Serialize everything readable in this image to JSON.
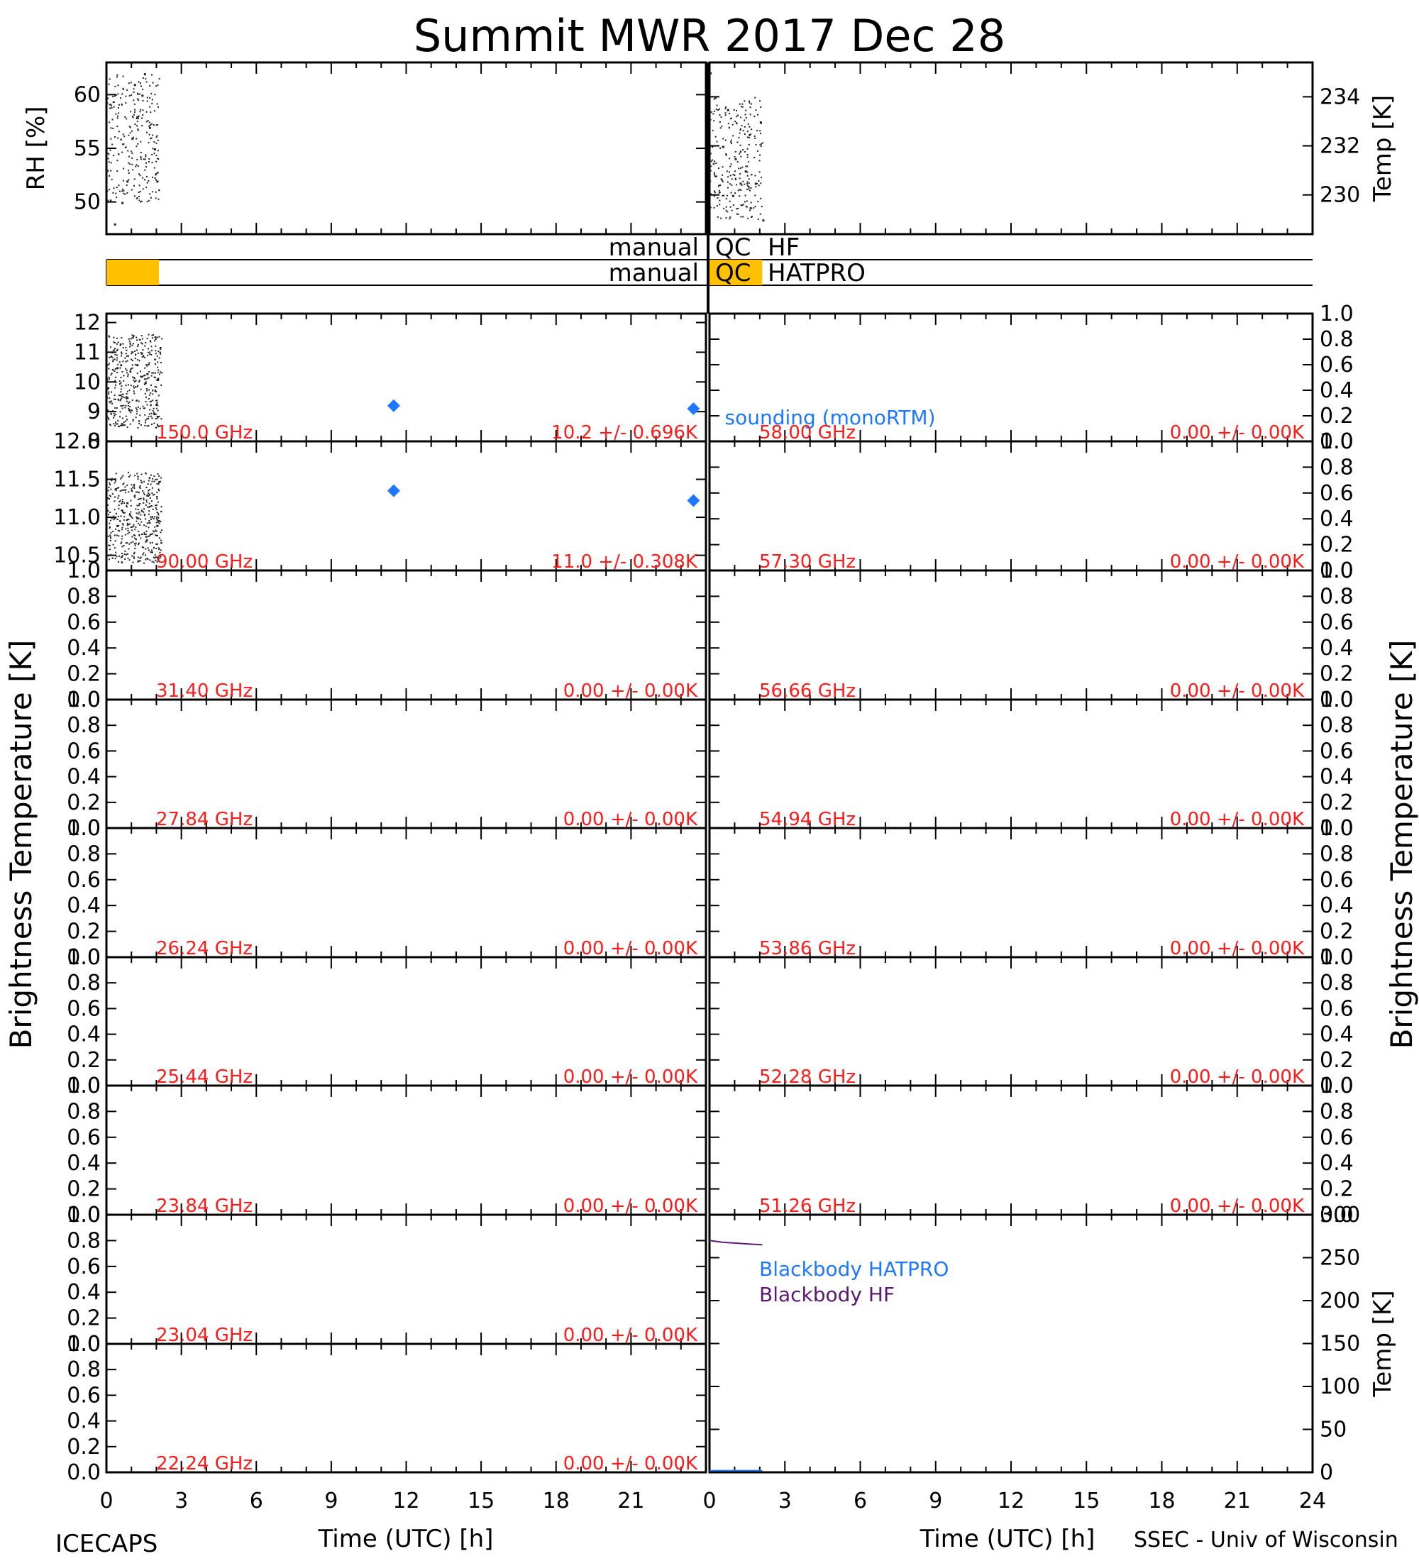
{
  "title": "Summit MWR 2017 Dec 28",
  "footer": {
    "left": "ICECAPS",
    "right": "SSEC - Univ of Wisconsin"
  },
  "axis_labels": {
    "brightness_left": "Brightness Temperature [K]",
    "brightness_right": "Brightness Temperature [K]",
    "x_left": "Time (UTC) [h]",
    "x_right": "Time (UTC) [h]",
    "rh": "RH [%]",
    "temp_top": "Temp [K]",
    "temp_bottom": "Temp [K]"
  },
  "qc": {
    "hf": {
      "left_label": "manual",
      "right_label": "QC",
      "name": "HF",
      "flagged_hours": []
    },
    "hatpro": {
      "left_label": "manual",
      "right_label": "QC",
      "name": "HATPRO",
      "flagged_hours": [
        0,
        2.1
      ],
      "color": "#ffc000"
    }
  },
  "annotations": {
    "sounding": "sounding (monoRTM)",
    "blackbody_hatpro": "Blackbody HATPRO",
    "blackbody_hf": "Blackbody HF"
  },
  "colors": {
    "sounding": "#1e78ff",
    "blackbody_hatpro": "#1e78ff",
    "blackbody_hf": "#5a1a70",
    "channel_label": "#ff1a1a",
    "qc_flag": "#ffc000"
  },
  "chart_data": [
    {
      "type": "scatter",
      "id": "rh",
      "ylabel": "RH [%]",
      "x_range": [
        0,
        24
      ],
      "ylim": [
        47,
        63
      ],
      "y_ticks": [
        50,
        55,
        60
      ],
      "x_ticks": [
        0,
        3,
        6,
        9,
        12,
        15,
        18,
        21,
        24
      ],
      "series": [
        {
          "x": [
            0,
            0.3,
            0.6,
            0.8,
            1.0,
            1.1,
            1.2,
            1.4,
            1.5,
            1.7,
            1.9,
            2.0
          ],
          "y": [
            53,
            48,
            50,
            52,
            56,
            61,
            58,
            60,
            62,
            57,
            55,
            52
          ]
        }
      ]
    },
    {
      "type": "scatter",
      "id": "temp_top",
      "ylabel": "Temp [K]",
      "x_range": [
        0,
        24
      ],
      "ylim": [
        228.4,
        235.4
      ],
      "y_ticks": [
        230,
        232,
        234
      ],
      "series": [
        {
          "x": [
            0,
            0.2,
            0.5,
            0.7,
            0.9,
            1.0,
            1.2,
            1.4,
            1.6,
            1.8,
            2.0,
            2.1
          ],
          "y": [
            235,
            234,
            232,
            233.5,
            230,
            231.5,
            230.5,
            231,
            229.5,
            230.5,
            233,
            229
          ]
        }
      ]
    },
    {
      "type": "scatter",
      "id": "tb_150",
      "channel": "150.0 GHz",
      "stats": "10.2 +/- 0.696K",
      "x_range": [
        0,
        24
      ],
      "ylim": [
        8,
        12.3
      ],
      "y_ticks": [
        8,
        9,
        10,
        11,
        12
      ],
      "series": [
        {
          "name": "HATPRO",
          "x": [
            0,
            0.4,
            0.8,
            1.2,
            1.6,
            2.0
          ],
          "y": [
            9.8,
            10.5,
            9.5,
            10.6,
            10.3,
            10.1
          ]
        },
        {
          "name": "sounding (monoRTM)",
          "x": [
            11.5,
            23.5
          ],
          "y": [
            9.2,
            9.1
          ]
        }
      ]
    },
    {
      "type": "scatter",
      "id": "tb_90",
      "channel": "90.00 GHz",
      "stats": "11.0 +/- 0.308K",
      "x_range": [
        0,
        24
      ],
      "ylim": [
        10.3,
        12.0
      ],
      "y_ticks": [
        10.5,
        11.0,
        11.5,
        12.0
      ],
      "series": [
        {
          "name": "HATPRO",
          "x": [
            0,
            0.4,
            0.8,
            1.2,
            1.6,
            2.0
          ],
          "y": [
            11.1,
            10.9,
            11.2,
            11.0,
            11.3,
            10.9
          ]
        },
        {
          "name": "sounding (monoRTM)",
          "x": [
            11.5,
            23.5
          ],
          "y": [
            11.35,
            11.22
          ]
        }
      ]
    },
    {
      "type": "line",
      "id": "tb_31_40",
      "channel": "31.40 GHz",
      "stats": "0.00 +/- 0.00K",
      "ylim": [
        0,
        1
      ],
      "y_ticks": [
        0.0,
        0.2,
        0.4,
        0.6,
        0.8,
        1.0
      ],
      "series": []
    },
    {
      "type": "line",
      "id": "tb_27_84",
      "channel": "27.84 GHz",
      "stats": "0.00 +/- 0.00K",
      "ylim": [
        0,
        1
      ],
      "y_ticks": [
        0.0,
        0.2,
        0.4,
        0.6,
        0.8,
        1.0
      ],
      "series": []
    },
    {
      "type": "line",
      "id": "tb_26_24",
      "channel": "26.24 GHz",
      "stats": "0.00 +/- 0.00K",
      "ylim": [
        0,
        1
      ],
      "y_ticks": [
        0.0,
        0.2,
        0.4,
        0.6,
        0.8,
        1.0
      ],
      "series": []
    },
    {
      "type": "line",
      "id": "tb_25_44",
      "channel": "25.44 GHz",
      "stats": "0.00 +/- 0.00K",
      "ylim": [
        0,
        1
      ],
      "y_ticks": [
        0.0,
        0.2,
        0.4,
        0.6,
        0.8,
        1.0
      ],
      "series": []
    },
    {
      "type": "line",
      "id": "tb_23_84",
      "channel": "23.84 GHz",
      "stats": "0.00 +/- 0.00K",
      "ylim": [
        0,
        1
      ],
      "y_ticks": [
        0.0,
        0.2,
        0.4,
        0.6,
        0.8,
        1.0
      ],
      "series": []
    },
    {
      "type": "line",
      "id": "tb_23_04",
      "channel": "23.04 GHz",
      "stats": "0.00 +/- 0.00K",
      "ylim": [
        0,
        1
      ],
      "y_ticks": [
        0.0,
        0.2,
        0.4,
        0.6,
        0.8,
        1.0
      ],
      "series": []
    },
    {
      "type": "line",
      "id": "tb_22_24",
      "channel": "22.24 GHz",
      "stats": "0.00 +/- 0.00K",
      "ylim": [
        0,
        1
      ],
      "y_ticks": [
        0.0,
        0.2,
        0.4,
        0.6,
        0.8,
        1.0
      ],
      "series": []
    },
    {
      "type": "line",
      "id": "tb_58_00",
      "channel": "58.00 GHz",
      "stats": "0.00 +/- 0.00K",
      "ylim": [
        0,
        1
      ],
      "y_ticks": [
        0.0,
        0.2,
        0.4,
        0.6,
        0.8,
        1.0
      ],
      "series": []
    },
    {
      "type": "line",
      "id": "tb_57_30",
      "channel": "57.30 GHz",
      "stats": "0.00 +/- 0.00K",
      "ylim": [
        0,
        1
      ],
      "y_ticks": [
        0.0,
        0.2,
        0.4,
        0.6,
        0.8,
        1.0
      ],
      "series": []
    },
    {
      "type": "line",
      "id": "tb_56_66",
      "channel": "56.66 GHz",
      "stats": "0.00 +/- 0.00K",
      "ylim": [
        0,
        1
      ],
      "y_ticks": [
        0.0,
        0.2,
        0.4,
        0.6,
        0.8,
        1.0
      ],
      "series": []
    },
    {
      "type": "line",
      "id": "tb_54_94",
      "channel": "54.94 GHz",
      "stats": "0.00 +/- 0.00K",
      "ylim": [
        0,
        1
      ],
      "y_ticks": [
        0.0,
        0.2,
        0.4,
        0.6,
        0.8,
        1.0
      ],
      "series": []
    },
    {
      "type": "line",
      "id": "tb_53_86",
      "channel": "53.86 GHz",
      "stats": "0.00 +/- 0.00K",
      "ylim": [
        0,
        1
      ],
      "y_ticks": [
        0.0,
        0.2,
        0.4,
        0.6,
        0.8,
        1.0
      ],
      "series": []
    },
    {
      "type": "line",
      "id": "tb_52_28",
      "channel": "52.28 GHz",
      "stats": "0.00 +/- 0.00K",
      "ylim": [
        0,
        1
      ],
      "y_ticks": [
        0.0,
        0.2,
        0.4,
        0.6,
        0.8,
        1.0
      ],
      "series": []
    },
    {
      "type": "line",
      "id": "tb_51_26",
      "channel": "51.26 GHz",
      "stats": "0.00 +/- 0.00K",
      "ylim": [
        0,
        1
      ],
      "y_ticks": [
        0.0,
        0.2,
        0.4,
        0.6,
        0.8,
        1.0
      ],
      "series": []
    },
    {
      "type": "line",
      "id": "blackbody",
      "ylabel": "Temp [K]",
      "x_range": [
        0,
        24
      ],
      "ylim": [
        0,
        300
      ],
      "y_ticks": [
        0,
        50,
        100,
        150,
        200,
        250,
        300
      ],
      "x_ticks": [
        0,
        3,
        6,
        9,
        12,
        15,
        18,
        21,
        24
      ],
      "series": [
        {
          "name": "Blackbody HATPRO",
          "x": [
            0,
            2.1
          ],
          "y": [
            2,
            2
          ]
        },
        {
          "name": "Blackbody HF",
          "x": [
            0,
            0.5,
            1.0,
            1.5,
            2.1
          ],
          "y": [
            270,
            268,
            267,
            266,
            265
          ]
        }
      ]
    }
  ]
}
